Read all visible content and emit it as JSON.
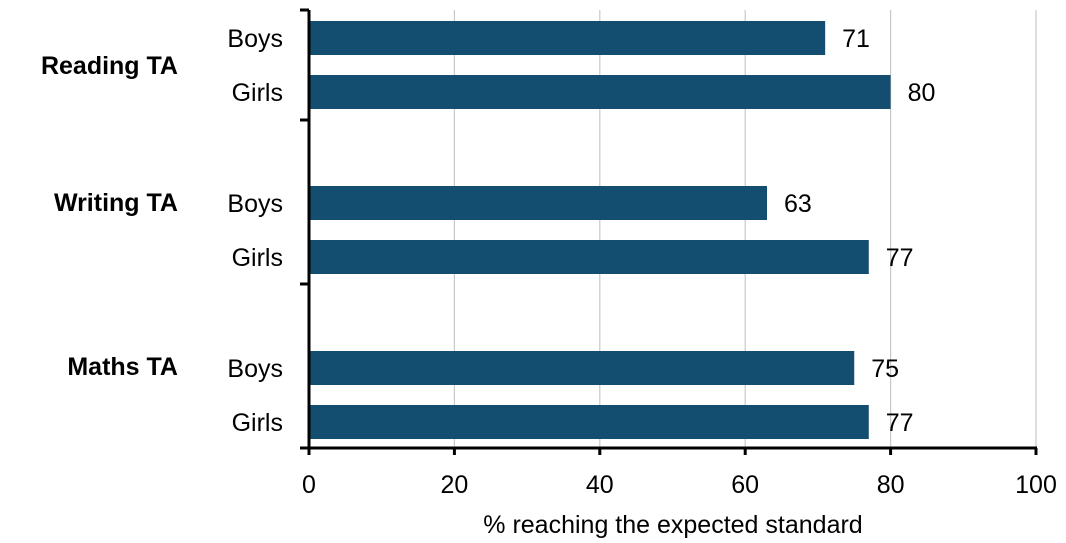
{
  "colors": {
    "bar": "#134e70",
    "grid": "#c8c8c8",
    "axis": "#000000"
  },
  "chart_data": {
    "type": "bar",
    "orientation": "horizontal",
    "title": "",
    "xlabel": "% reaching the expected standard",
    "ylabel": "",
    "xlim": [
      0,
      100
    ],
    "x_ticks": [
      0,
      20,
      40,
      60,
      80,
      100
    ],
    "grid": true,
    "groups": [
      {
        "label": "Reading TA",
        "bars": [
          {
            "label": "Boys",
            "value": 71
          },
          {
            "label": "Girls",
            "value": 80
          }
        ]
      },
      {
        "label": "Writing TA",
        "bars": [
          {
            "label": "Boys",
            "value": 63
          },
          {
            "label": "Girls",
            "value": 77
          }
        ]
      },
      {
        "label": "Maths TA",
        "bars": [
          {
            "label": "Boys",
            "value": 75
          },
          {
            "label": "Girls",
            "value": 77
          }
        ]
      }
    ]
  }
}
